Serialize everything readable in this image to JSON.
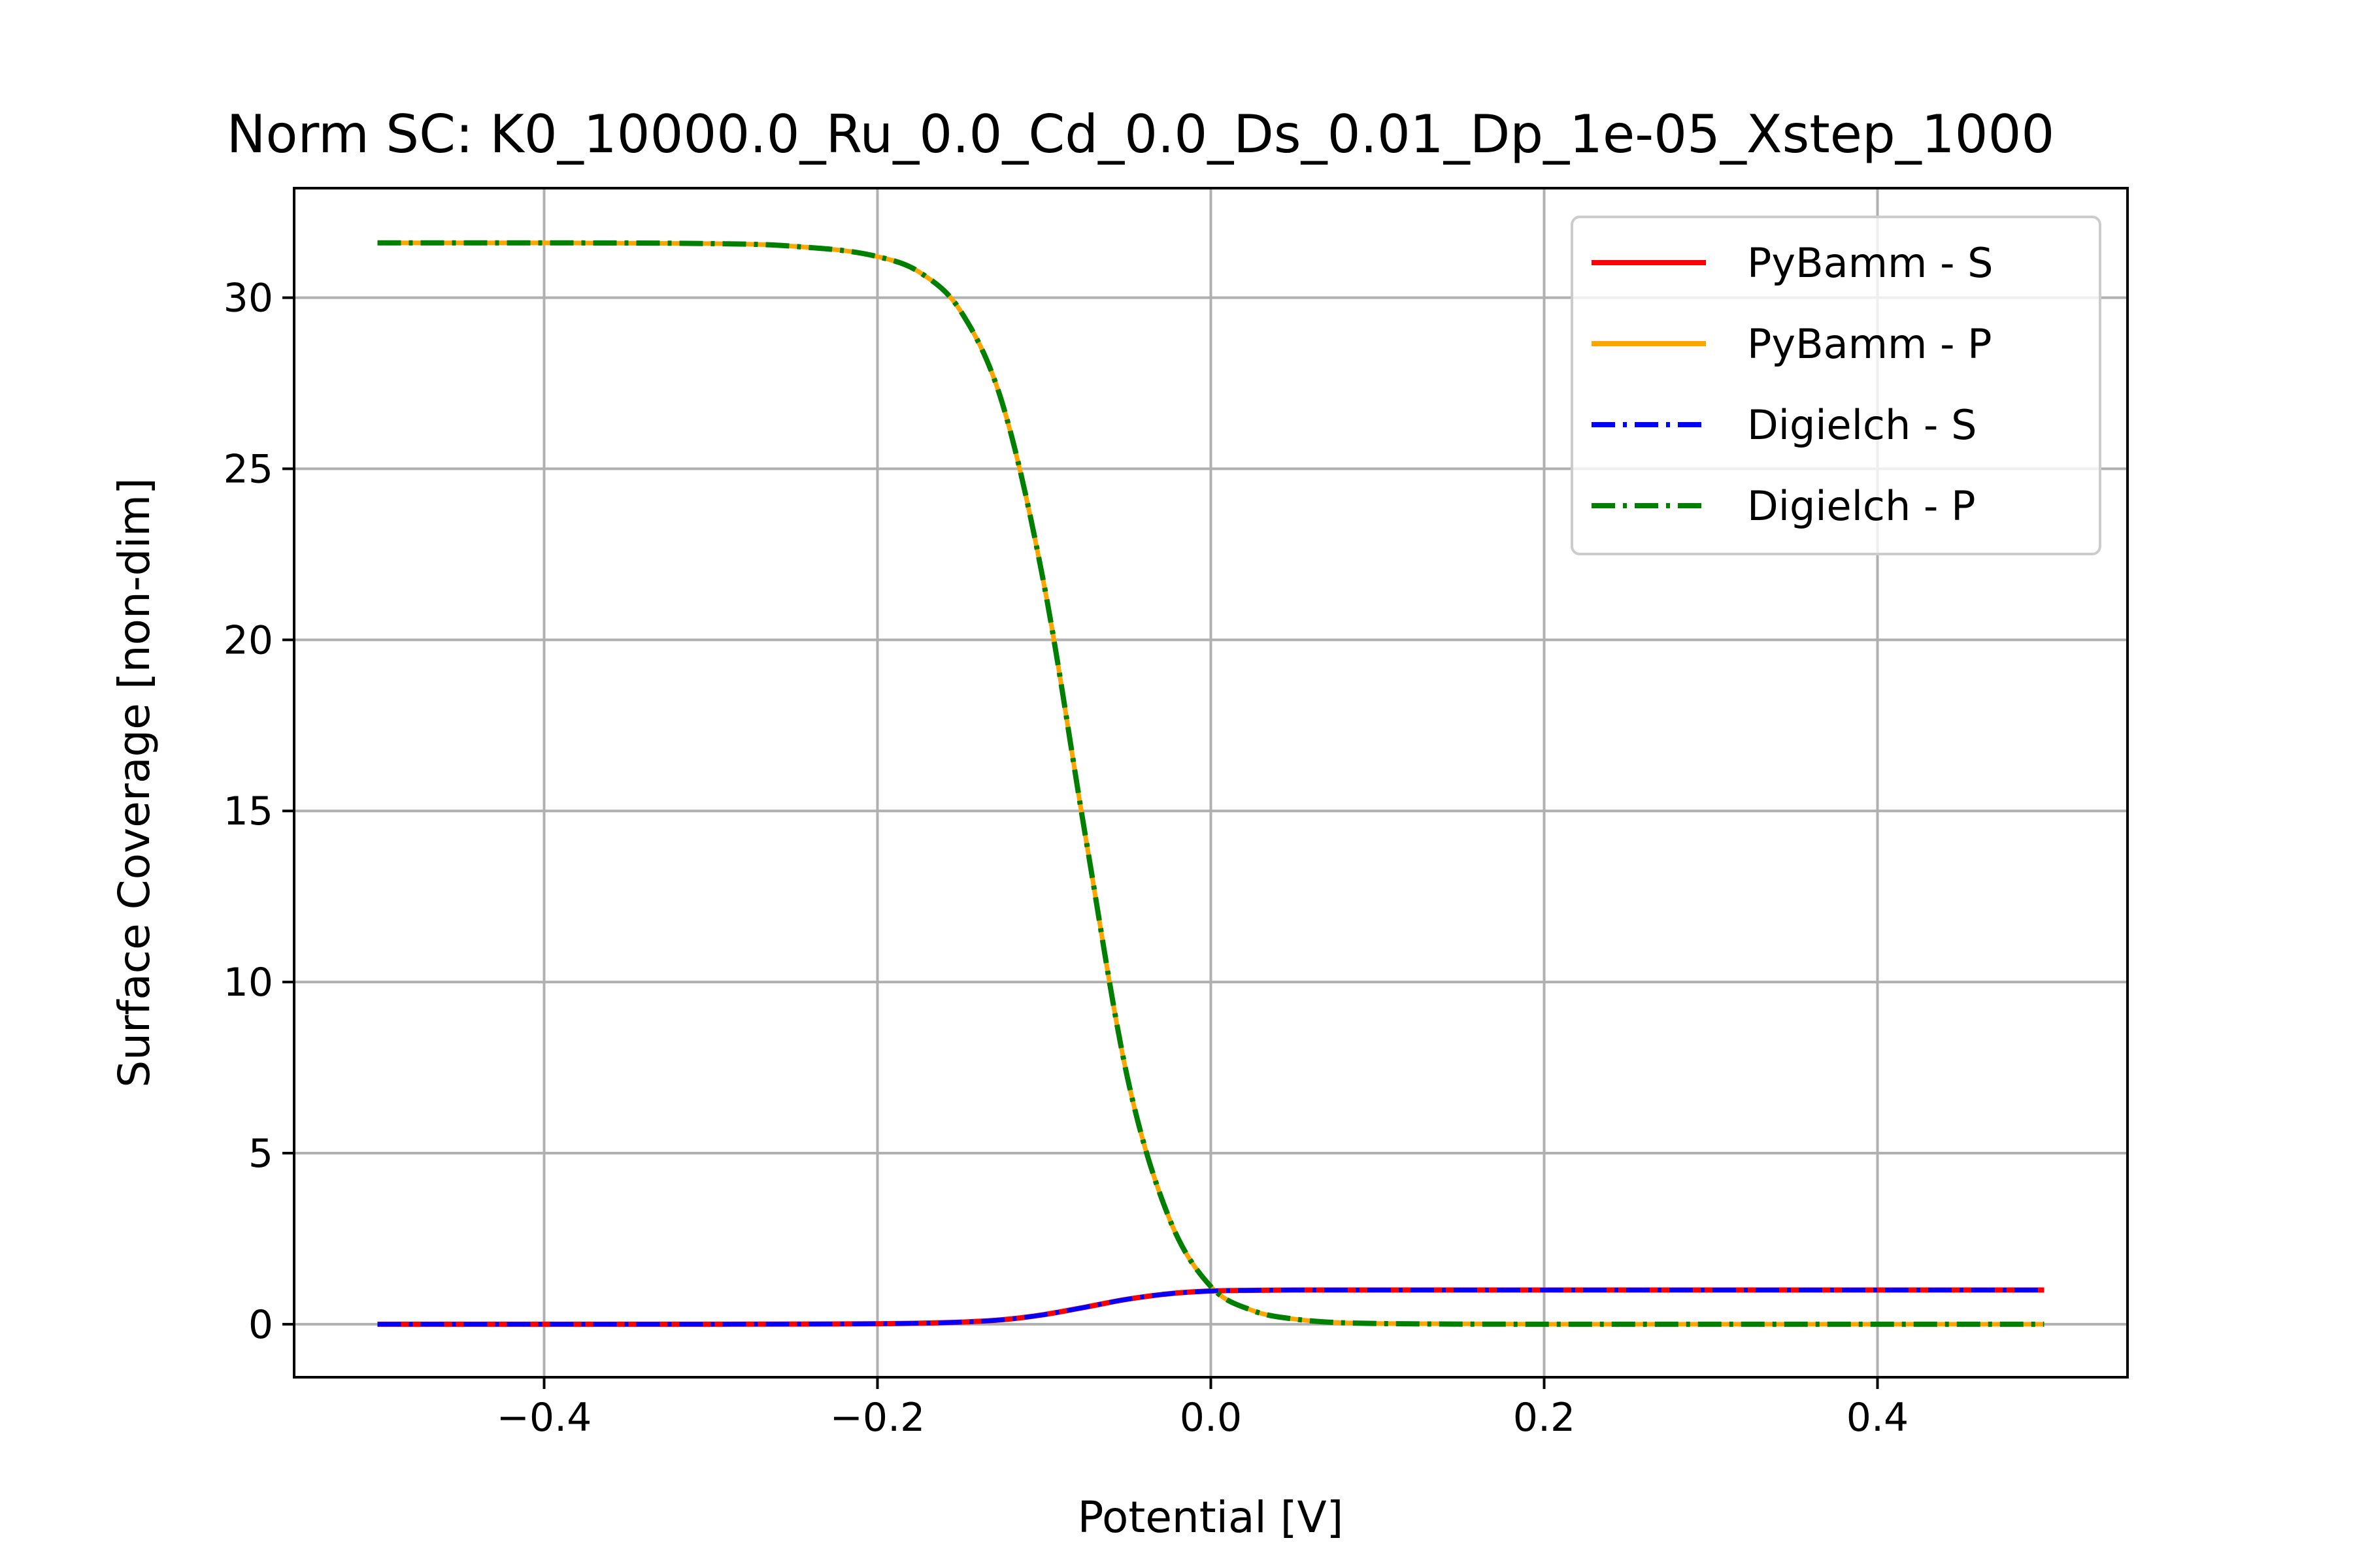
{
  "chart_data": {
    "type": "line",
    "title": "Norm SC: K0_10000.0_Ru_0.0_Cd_0.0_Ds_0.01_Dp_1e-05_Xstep_1000",
    "xlabel": "Potential [V]",
    "ylabel": "Surface Coverage [non-dim]",
    "xlim": [
      -0.55,
      0.55
    ],
    "ylim": [
      -1.55,
      33.2
    ],
    "xticks": [
      -0.4,
      -0.2,
      0.0,
      0.2,
      0.4
    ],
    "xtick_labels": [
      "−0.4",
      "−0.2",
      "0.0",
      "0.2",
      "0.4"
    ],
    "yticks": [
      0,
      5,
      10,
      15,
      20,
      25,
      30
    ],
    "ytick_labels": [
      "0",
      "5",
      "10",
      "15",
      "20",
      "25",
      "30"
    ],
    "grid": true,
    "legend_position": "top-right",
    "series": [
      {
        "name": "PyBamm - S",
        "color": "#ff0000",
        "style": "solid",
        "x": [
          -0.5,
          -0.4,
          -0.3,
          -0.25,
          -0.2,
          -0.175,
          -0.15,
          -0.125,
          -0.1,
          -0.075,
          -0.05,
          -0.025,
          0.0,
          0.025,
          0.05,
          0.1,
          0.2,
          0.3,
          0.4,
          0.5
        ],
        "y": [
          0.0,
          0.0,
          0.0,
          0.003,
          0.013,
          0.027,
          0.06,
          0.13,
          0.28,
          0.5,
          0.73,
          0.89,
          0.97,
          0.99,
          1.0,
          1.0,
          1.0,
          1.0,
          1.0,
          1.0
        ]
      },
      {
        "name": "PyBamm - P",
        "color": "#ffa500",
        "style": "solid",
        "x": [
          -0.5,
          -0.4,
          -0.3,
          -0.25,
          -0.2,
          -0.175,
          -0.15,
          -0.125,
          -0.1,
          -0.075,
          -0.05,
          -0.025,
          0.0,
          0.025,
          0.05,
          0.1,
          0.2,
          0.3,
          0.4,
          0.5
        ],
        "y": [
          31.6,
          31.6,
          31.58,
          31.5,
          31.2,
          30.75,
          29.6,
          26.9,
          21.6,
          14.2,
          7.2,
          3.1,
          1.1,
          0.4,
          0.15,
          0.02,
          0.0,
          0.0,
          0.0,
          0.0
        ]
      },
      {
        "name": "Digielch - S",
        "color": "#0000ff",
        "style": "dashdot",
        "x": [
          -0.5,
          -0.4,
          -0.3,
          -0.25,
          -0.2,
          -0.175,
          -0.15,
          -0.125,
          -0.1,
          -0.075,
          -0.05,
          -0.025,
          0.0,
          0.025,
          0.05,
          0.1,
          0.2,
          0.3,
          0.4,
          0.5
        ],
        "y": [
          0.0,
          0.0,
          0.0,
          0.003,
          0.013,
          0.027,
          0.06,
          0.13,
          0.28,
          0.5,
          0.73,
          0.89,
          0.97,
          0.99,
          1.0,
          1.0,
          1.0,
          1.0,
          1.0,
          1.0
        ]
      },
      {
        "name": "Digielch - P",
        "color": "#008000",
        "style": "dashdot",
        "x": [
          -0.5,
          -0.4,
          -0.3,
          -0.25,
          -0.2,
          -0.175,
          -0.15,
          -0.125,
          -0.1,
          -0.075,
          -0.05,
          -0.025,
          0.0,
          0.025,
          0.05,
          0.1,
          0.2,
          0.3,
          0.4,
          0.5
        ],
        "y": [
          31.6,
          31.6,
          31.58,
          31.5,
          31.2,
          30.75,
          29.6,
          26.9,
          21.6,
          14.2,
          7.2,
          3.1,
          1.1,
          0.4,
          0.15,
          0.02,
          0.0,
          0.0,
          0.0,
          0.0
        ]
      }
    ]
  }
}
